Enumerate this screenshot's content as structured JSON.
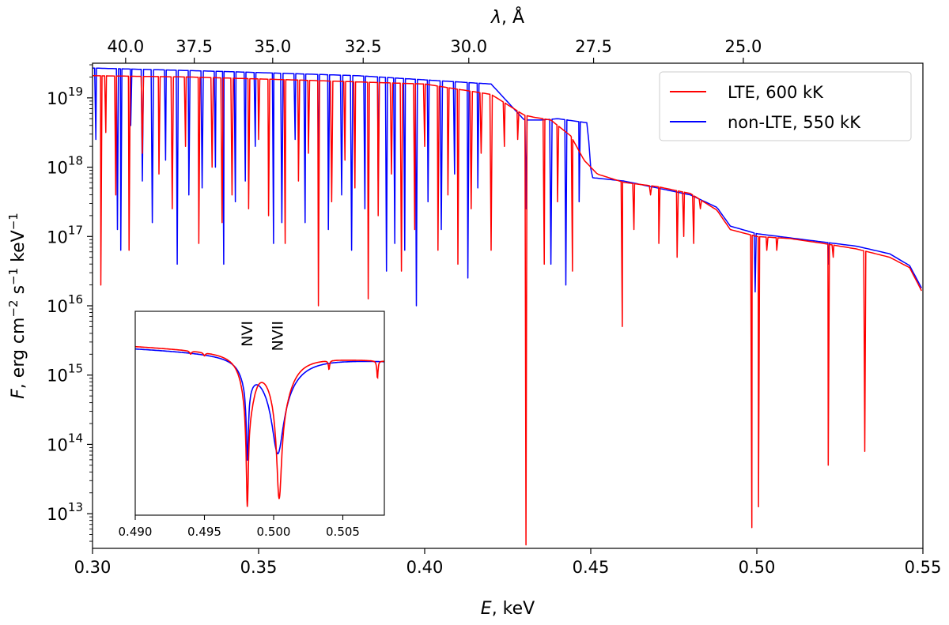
{
  "chart_data": {
    "type": "line",
    "yscale": "log",
    "xlabel": "E, keV",
    "x2label": "λ, Å",
    "ylabel": "F, erg cm⁻² s⁻¹ keV⁻¹",
    "xlim": [
      0.3,
      0.55
    ],
    "ylim_exp": [
      12.5,
      19.5
    ],
    "xticks": [
      {
        "v": 0.3,
        "label": "0.30"
      },
      {
        "v": 0.35,
        "label": "0.35"
      },
      {
        "v": 0.4,
        "label": "0.40"
      },
      {
        "v": 0.45,
        "label": "0.45"
      },
      {
        "v": 0.5,
        "label": "0.50"
      },
      {
        "v": 0.55,
        "label": "0.55"
      }
    ],
    "x2ticks": [
      {
        "v": 40.0,
        "label": "40.0"
      },
      {
        "v": 37.5,
        "label": "37.5"
      },
      {
        "v": 35.0,
        "label": "35.0"
      },
      {
        "v": 32.5,
        "label": "32.5"
      },
      {
        "v": 30.0,
        "label": "30.0"
      },
      {
        "v": 27.5,
        "label": "27.5"
      },
      {
        "v": 25.0,
        "label": "25.0"
      }
    ],
    "yticks": [
      {
        "exp": 13,
        "base": "10",
        "sup": "13"
      },
      {
        "exp": 14,
        "base": "10",
        "sup": "14"
      },
      {
        "exp": 15,
        "base": "10",
        "sup": "15"
      },
      {
        "exp": 16,
        "base": "10",
        "sup": "16"
      },
      {
        "exp": 17,
        "base": "10",
        "sup": "17"
      },
      {
        "exp": 18,
        "base": "10",
        "sup": "18"
      },
      {
        "exp": 19,
        "base": "10",
        "sup": "19"
      }
    ],
    "legend_position": "top-right",
    "series": [
      {
        "name": "LTE, 600 kK",
        "color": "#ff0000",
        "continuum": [
          [
            0.3,
            19.32
          ],
          [
            0.33,
            19.3
          ],
          [
            0.36,
            19.26
          ],
          [
            0.4,
            19.2
          ],
          [
            0.42,
            19.05
          ],
          [
            0.43,
            18.75
          ],
          [
            0.433,
            18.72
          ],
          [
            0.438,
            18.68
          ],
          [
            0.444,
            18.45
          ],
          [
            0.448,
            18.1
          ],
          [
            0.452,
            17.9
          ],
          [
            0.46,
            17.78
          ],
          [
            0.47,
            17.72
          ],
          [
            0.48,
            17.62
          ],
          [
            0.488,
            17.38
          ],
          [
            0.492,
            17.1
          ],
          [
            0.5,
            17.0
          ],
          [
            0.51,
            16.97
          ],
          [
            0.52,
            16.9
          ],
          [
            0.53,
            16.82
          ],
          [
            0.54,
            16.7
          ],
          [
            0.546,
            16.55
          ],
          [
            0.55,
            16.18
          ]
        ],
        "lines": [
          [
            0.3025,
            16.3
          ],
          [
            0.304,
            18.5
          ],
          [
            0.307,
            17.6
          ],
          [
            0.311,
            16.8
          ],
          [
            0.315,
            18.2
          ],
          [
            0.32,
            17.9
          ],
          [
            0.324,
            17.4
          ],
          [
            0.328,
            18.3
          ],
          [
            0.332,
            16.9
          ],
          [
            0.336,
            18.0
          ],
          [
            0.339,
            17.2
          ],
          [
            0.342,
            17.6
          ],
          [
            0.347,
            17.4
          ],
          [
            0.35,
            18.4
          ],
          [
            0.353,
            17.3
          ],
          [
            0.358,
            16.9
          ],
          [
            0.362,
            17.8
          ],
          [
            0.365,
            18.2
          ],
          [
            0.368,
            16.0
          ],
          [
            0.372,
            17.5
          ],
          [
            0.376,
            18.1
          ],
          [
            0.379,
            17.7
          ],
          [
            0.383,
            16.1
          ],
          [
            0.386,
            17.3
          ],
          [
            0.39,
            17.9
          ],
          [
            0.393,
            16.5
          ],
          [
            0.397,
            17.1
          ],
          [
            0.4,
            18.3
          ],
          [
            0.404,
            16.8
          ],
          [
            0.407,
            17.6
          ],
          [
            0.41,
            16.6
          ],
          [
            0.414,
            17.4
          ],
          [
            0.417,
            18.2
          ],
          [
            0.42,
            16.8
          ],
          [
            0.424,
            18.3
          ],
          [
            0.428,
            18.4
          ],
          [
            0.4305,
            12.55
          ],
          [
            0.436,
            16.6
          ],
          [
            0.44,
            17.5
          ],
          [
            0.4445,
            16.5
          ],
          [
            0.4595,
            15.7
          ],
          [
            0.463,
            17.1
          ],
          [
            0.468,
            17.6
          ],
          [
            0.4705,
            16.9
          ],
          [
            0.476,
            16.7
          ],
          [
            0.478,
            17.0
          ],
          [
            0.481,
            16.9
          ],
          [
            0.483,
            17.4
          ],
          [
            0.486,
            17.5
          ],
          [
            0.4985,
            12.8
          ],
          [
            0.5005,
            13.1
          ],
          [
            0.503,
            16.8
          ],
          [
            0.506,
            16.8
          ],
          [
            0.5215,
            13.7
          ],
          [
            0.523,
            16.7
          ],
          [
            0.5325,
            13.9
          ],
          [
            0.534,
            16.8
          ]
        ]
      },
      {
        "name": "non-LTE, 550 kK",
        "color": "#0000ff",
        "continuum": [
          [
            0.3,
            19.43
          ],
          [
            0.34,
            19.38
          ],
          [
            0.38,
            19.32
          ],
          [
            0.42,
            19.2
          ],
          [
            0.43,
            18.68
          ],
          [
            0.435,
            18.68
          ],
          [
            0.44,
            18.7
          ],
          [
            0.449,
            18.64
          ],
          [
            0.4502,
            17.85
          ],
          [
            0.46,
            17.8
          ],
          [
            0.47,
            17.7
          ],
          [
            0.48,
            17.6
          ],
          [
            0.488,
            17.42
          ],
          [
            0.492,
            17.15
          ],
          [
            0.5,
            17.04
          ],
          [
            0.51,
            16.98
          ],
          [
            0.52,
            16.92
          ],
          [
            0.53,
            16.86
          ],
          [
            0.54,
            16.75
          ],
          [
            0.546,
            16.58
          ],
          [
            0.55,
            16.22
          ]
        ],
        "lines": [
          [
            0.301,
            18.4
          ],
          [
            0.3075,
            17.1
          ],
          [
            0.3085,
            16.8
          ],
          [
            0.3115,
            18.6
          ],
          [
            0.315,
            17.8
          ],
          [
            0.318,
            17.2
          ],
          [
            0.322,
            18.1
          ],
          [
            0.3255,
            16.6
          ],
          [
            0.329,
            17.6
          ],
          [
            0.333,
            17.7
          ],
          [
            0.337,
            18.0
          ],
          [
            0.3395,
            16.6
          ],
          [
            0.343,
            17.5
          ],
          [
            0.346,
            17.8
          ],
          [
            0.349,
            18.3
          ],
          [
            0.3545,
            16.9
          ],
          [
            0.357,
            17.2
          ],
          [
            0.361,
            18.4
          ],
          [
            0.364,
            17.2
          ],
          [
            0.368,
            17.8
          ],
          [
            0.371,
            17.1
          ],
          [
            0.375,
            17.6
          ],
          [
            0.378,
            16.8
          ],
          [
            0.382,
            17.4
          ],
          [
            0.386,
            17.8
          ],
          [
            0.3885,
            16.5
          ],
          [
            0.391,
            16.9
          ],
          [
            0.394,
            16.8
          ],
          [
            0.3975,
            16.0
          ],
          [
            0.401,
            17.5
          ],
          [
            0.405,
            17.1
          ],
          [
            0.409,
            17.9
          ],
          [
            0.413,
            16.4
          ],
          [
            0.416,
            17.7
          ],
          [
            0.4305,
            17.4
          ],
          [
            0.438,
            16.6
          ],
          [
            0.4425,
            16.3
          ],
          [
            0.4465,
            17.5
          ],
          [
            0.4595,
            17.8
          ],
          [
            0.4995,
            16.2
          ],
          [
            0.5215,
            16.6
          ],
          [
            0.5325,
            17.0
          ]
        ]
      }
    ],
    "inset": {
      "xlim": [
        0.49,
        0.508
      ],
      "xticks": [
        {
          "v": 0.49,
          "label": "0.490"
        },
        {
          "v": 0.495,
          "label": "0.495"
        },
        {
          "v": 0.5,
          "label": "0.500"
        },
        {
          "v": 0.505,
          "label": "0.505"
        }
      ],
      "annotations": [
        {
          "text": "NVI",
          "x": 0.4981
        },
        {
          "text": "NVII",
          "x": 0.5003
        }
      ],
      "series": [
        {
          "name": "LTE, 600 kK",
          "color": "#ff0000",
          "base": 0.83,
          "slope": 0.07,
          "lines": [
            [
              0.4981,
              0.97,
              9e-05
            ],
            [
              0.5004,
              0.9,
              0.00022
            ],
            [
              0.4982,
              0.35,
              0.0005
            ],
            [
              0.5005,
              0.3,
              0.0009
            ],
            [
              0.495,
              0.02,
              8e-05
            ],
            [
              0.494,
              0.02,
              8e-05
            ],
            [
              0.504,
              0.06,
              5e-05
            ],
            [
              0.5075,
              0.12,
              5e-05
            ]
          ]
        },
        {
          "name": "non-LTE, 550 kK",
          "color": "#0000ff",
          "base": 0.82,
          "slope": 0.06,
          "lines": [
            [
              0.4981,
              0.6,
              9e-05
            ],
            [
              0.5003,
              0.55,
              0.0005
            ],
            [
              0.5003,
              0.2,
              0.0015
            ],
            [
              0.4981,
              0.15,
              0.0005
            ]
          ]
        }
      ]
    }
  }
}
